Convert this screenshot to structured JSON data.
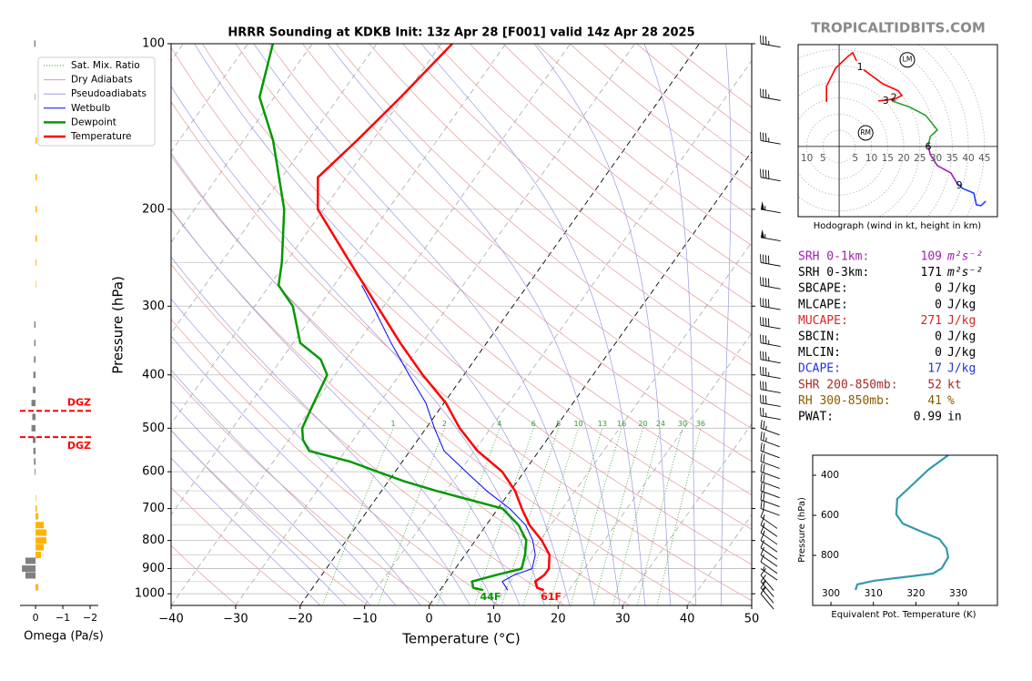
{
  "watermark": "TROPICALTIDBITS.COM",
  "chart_data": [
    {
      "type": "skewt",
      "title": "HRRR Sounding at KDKB Init: 13z Apr 28 [F001] valid 14z Apr 28 2025",
      "xlabel": "Temperature (°C)",
      "ylabel": "Pressure (hPa)",
      "xlim": [
        -40,
        50
      ],
      "ylim": [
        1050,
        100
      ],
      "log_y": true,
      "xticks": [
        {
          "value": -40,
          "label": "−40"
        },
        {
          "value": -30,
          "label": "−30"
        },
        {
          "value": -20,
          "label": "−20"
        },
        {
          "value": -10,
          "label": "−10"
        },
        0,
        10,
        20,
        30,
        40,
        50
      ],
      "yticks": [
        100,
        200,
        300,
        400,
        500,
        600,
        700,
        800,
        900,
        1000
      ],
      "yminor": [
        150,
        250,
        350,
        450,
        550,
        650,
        750,
        850,
        950
      ],
      "highlight_isotherms": [
        -20,
        0
      ],
      "background_lines": [
        {
          "name": "Sat. Mix. Ratio",
          "color": "#2ca02c",
          "labels": [
            1,
            2,
            4,
            6,
            8,
            10,
            13,
            16,
            20,
            24,
            30,
            36
          ]
        },
        {
          "name": "Dry Adiabats",
          "color": "#e39a9a"
        },
        {
          "name": "Pseudoadiabats",
          "color": "#9a9ae0"
        }
      ],
      "series": [
        {
          "name": "Wetbulb",
          "color": "#0000ff",
          "linewidth": 1,
          "pressure": [
            985,
            950,
            925,
            900,
            850,
            800,
            750,
            700,
            650,
            600,
            550,
            500,
            450,
            400,
            350,
            300,
            275
          ],
          "values": [
            10.5,
            8.7,
            9.8,
            11.9,
            10.9,
            8.9,
            6.1,
            1.8,
            -3.7,
            -9.0,
            -14.7,
            -18.7,
            -22.8,
            -28.5,
            -34.8,
            -41.7,
            -45.7
          ]
        },
        {
          "name": "Dewpoint",
          "color": "#009900",
          "linewidth": 2.5,
          "surface_label": "44F",
          "pressure": [
            985,
            975,
            950,
            925,
            900,
            850,
            800,
            750,
            700,
            650,
            625,
            600,
            575,
            550,
            525,
            500,
            450,
            400,
            375,
            350,
            300,
            275,
            250,
            200,
            150,
            125,
            100
          ],
          "values": [
            6.7,
            4.9,
            4.0,
            7.0,
            10.3,
            9.3,
            7.9,
            5.0,
            0.7,
            -11.5,
            -17.4,
            -22.7,
            -28.1,
            -35.6,
            -37.8,
            -39.2,
            -40.2,
            -41.2,
            -43.9,
            -48.9,
            -54.1,
            -58.6,
            -60.6,
            -66.1,
            -75.4,
            -82.3,
            -86.1
          ]
        },
        {
          "name": "Temperature",
          "color": "#ff0000",
          "linewidth": 2.5,
          "surface_label": "61F",
          "pressure": [
            985,
            975,
            950,
            925,
            900,
            850,
            800,
            750,
            700,
            650,
            600,
            550,
            500,
            450,
            400,
            350,
            300,
            250,
            200,
            175,
            150,
            125,
            100
          ],
          "values": [
            16.1,
            14.8,
            13.8,
            14.5,
            14.5,
            13.1,
            10.3,
            6.7,
            3.7,
            0.7,
            -3.4,
            -9.5,
            -14.8,
            -19.7,
            -26.4,
            -33.4,
            -41.0,
            -50.0,
            -60.9,
            -64.4,
            -62.4,
            -60.4,
            -58.3
          ]
        }
      ],
      "wind": {
        "pressure": [
          100,
          125,
          150,
          175,
          200,
          225,
          250,
          275,
          300,
          325,
          350,
          375,
          400,
          425,
          450,
          475,
          500,
          525,
          550,
          575,
          600,
          625,
          650,
          675,
          700,
          725,
          750,
          775,
          800,
          825,
          850,
          875,
          900,
          925,
          950,
          975,
          1000
        ],
        "speed": [
          35,
          35,
          35,
          40,
          55,
          55,
          40,
          40,
          40,
          40,
          35,
          35,
          35,
          30,
          30,
          25,
          25,
          25,
          20,
          20,
          20,
          20,
          20,
          20,
          20,
          15,
          15,
          15,
          10,
          10,
          10,
          10,
          5,
          10,
          15,
          15,
          10
        ],
        "direction": [
          280,
          280,
          280,
          280,
          280,
          280,
          280,
          280,
          280,
          280,
          280,
          280,
          280,
          280,
          280,
          280,
          290,
          290,
          290,
          290,
          290,
          290,
          290,
          290,
          290,
          305,
          305,
          305,
          305,
          305,
          305,
          305,
          305,
          320,
          320,
          320,
          320
        ]
      }
    },
    {
      "type": "omega",
      "xlabel": "Omega (Pa/s)",
      "xlim": [
        0.57,
        -2.3
      ],
      "ylim": [
        1050,
        100
      ],
      "log_y": true,
      "xticks": [
        0,
        {
          "value": -1,
          "label": "−1"
        },
        {
          "value": -2,
          "label": "−2"
        }
      ],
      "color_positive": "#808080",
      "color_negative": "#ffb300",
      "pressure": [
        100,
        125,
        150,
        175,
        200,
        226,
        250,
        274,
        324,
        350,
        375,
        400,
        426,
        450,
        477,
        500,
        525,
        550,
        575,
        600,
        670,
        700,
        723,
        750,
        774,
        800,
        823,
        850,
        871,
        900,
        926,
        973
      ],
      "values": [
        0.05,
        0.02,
        -0.05,
        -0.05,
        -0.05,
        -0.05,
        -0.03,
        -0.02,
        0.05,
        0.05,
        0.06,
        0.08,
        0.1,
        0.15,
        0.12,
        0.15,
        0.1,
        0.08,
        0.06,
        0.03,
        -0.02,
        -0.05,
        -0.1,
        -0.3,
        -0.4,
        -0.4,
        -0.3,
        -0.2,
        0.37,
        0.5,
        0.37,
        -0.1
      ],
      "dgz": [
        {
          "pressure": 465,
          "label": "DGZ"
        },
        {
          "pressure": 519,
          "label": "DGZ"
        }
      ],
      "dgz_color": "#ff0000"
    },
    {
      "type": "hodograph",
      "caption": "Hodograph (wind in kt, height in km)",
      "xlim": [
        -12.7,
        49
      ],
      "ylim": [
        -21.7,
        31.5
      ],
      "ring_labels": [
        {
          "value": -10,
          "label": "10"
        },
        {
          "value": -5,
          "label": "5"
        },
        5,
        10,
        15,
        20,
        25,
        30,
        35,
        40,
        45
      ],
      "segments": [
        {
          "color": "#ff0000",
          "u": [
            -3.9,
            -3.9,
            -1.1,
            2.8,
            4.2,
            5.4
          ],
          "v": [
            13.8,
            18.6,
            24.2,
            27.9,
            29,
            26.5
          ]
        },
        {
          "color": "#ff0000",
          "u": [
            7.6,
            13.5,
            18.3,
            19.4,
            17.7,
            14.9,
            12.1
          ],
          "v": [
            23.7,
            19.4,
            17.2,
            15.8,
            14.9,
            14.4,
            14.1
          ]
        },
        {
          "color": "#2ca02c",
          "u": [
            16.3,
            22,
            26.8,
            30.4,
            28.2,
            27.6
          ],
          "v": [
            14.1,
            12.1,
            9.6,
            5.1,
            3.1,
            0.3
          ]
        },
        {
          "color": "#a020b0",
          "u": [
            27.6,
            28.2,
            30.4,
            34.6,
            36.6
          ],
          "v": [
            0.3,
            -2.5,
            -5.9,
            -8.2,
            -11.5
          ]
        },
        {
          "color": "#1f3fff",
          "u": [
            36.6,
            38.3,
            41.7,
            42.5,
            43.9,
            45.4
          ],
          "v": [
            -11.5,
            -13,
            -14.4,
            -18,
            -18.3,
            -16.9
          ]
        }
      ],
      "height_labels": [
        {
          "label": "1",
          "u": 6.5,
          "v": 24.5
        },
        {
          "label": "2",
          "u": 16.9,
          "v": 15
        },
        {
          "label": "3",
          "u": 14.4,
          "v": 14.1
        },
        {
          "label": "6",
          "u": 27.6,
          "v": -0.1
        },
        {
          "label": "9",
          "u": 37.2,
          "v": -12.1
        }
      ],
      "storm_motion": [
        {
          "label": "LM",
          "u": 21.1,
          "v": 26.8
        },
        {
          "label": "RM",
          "u": 8.2,
          "v": 4.2
        }
      ]
    },
    {
      "type": "line",
      "xlabel": "Equivalent Pot. Temperature (K)",
      "ylabel": "Pressure (hPa)",
      "xlim": [
        295.7,
        339.2
      ],
      "ylim": [
        1050,
        300
      ],
      "xticks": [
        300,
        310,
        320,
        330
      ],
      "yticks": [
        400,
        600,
        800
      ],
      "color": "#3399aa",
      "pressure": [
        300,
        373,
        459,
        518,
        595,
        641,
        677,
        718,
        764,
        809,
        864,
        891,
        905,
        927,
        945,
        973
      ],
      "values": [
        327.6,
        322.9,
        318.6,
        315.6,
        315.4,
        316.9,
        320.8,
        325.5,
        327.2,
        327.6,
        326.1,
        324,
        318.6,
        310.1,
        306.2,
        305.8
      ]
    }
  ],
  "stats": [
    {
      "label": "SRH 0-1km:",
      "value": 109,
      "unit": "m²s⁻²",
      "color": "#a020b0"
    },
    {
      "label": "SRH 0-3km:",
      "value": 171,
      "unit": "m²s⁻²",
      "color": "#000000"
    },
    {
      "label": "SBCAPE:",
      "value": 0,
      "unit": "J/kg",
      "color": "#000000"
    },
    {
      "label": "MLCAPE:",
      "value": 0,
      "unit": "J/kg",
      "color": "#000000"
    },
    {
      "label": "MUCAPE:",
      "value": 271,
      "unit": "J/kg",
      "color": "#d62728"
    },
    {
      "label": "SBCIN:",
      "value": 0,
      "unit": "J/kg",
      "color": "#000000"
    },
    {
      "label": "MLCIN:",
      "value": 0,
      "unit": "J/kg",
      "color": "#000000"
    },
    {
      "label": "DCAPE:",
      "value": 17,
      "unit": "J/kg",
      "color": "#2233dd"
    },
    {
      "label": "SHR 200-850mb:",
      "value": 52,
      "unit": "kt",
      "color": "#a52a2a"
    },
    {
      "label": "RH 300-850mb:",
      "value": 41,
      "unit": "%",
      "color": "#8b5a00"
    },
    {
      "label": "PWAT:",
      "value": 0.99,
      "unit": "in",
      "color": "#000000"
    }
  ]
}
